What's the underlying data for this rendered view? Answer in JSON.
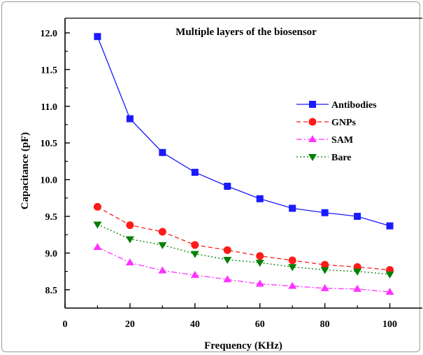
{
  "chart_data": {
    "type": "line",
    "title": "Multiple layers of the biosensor",
    "xlabel": "Frequency (KHz)",
    "ylabel": "Capacitance (pF)",
    "xlim": [
      0,
      110
    ],
    "ylim": [
      8.25,
      12.2
    ],
    "x_ticks": [
      0,
      20,
      40,
      60,
      80,
      100
    ],
    "x_tick_labels": [
      "0",
      "20",
      "40",
      "60",
      "80",
      "100"
    ],
    "y_ticks": [
      8.5,
      9.0,
      9.5,
      10.0,
      10.5,
      11.0,
      11.5,
      12.0
    ],
    "y_tick_labels": [
      "8.5",
      "9.0",
      "9.5",
      "10.0",
      "10.5",
      "11.0",
      "11.5",
      "12.0"
    ],
    "legend_position": "right",
    "x": [
      10,
      20,
      30,
      40,
      50,
      60,
      70,
      80,
      90,
      100
    ],
    "series": [
      {
        "name": "Antibodies",
        "color": "#1a1aff",
        "marker": "square",
        "line": "solid",
        "values": [
          11.95,
          10.83,
          10.37,
          10.1,
          9.91,
          9.74,
          9.61,
          9.55,
          9.5,
          9.37
        ]
      },
      {
        "name": "GNPs",
        "color": "#ff1a1a",
        "marker": "circle",
        "line": "dashed",
        "values": [
          9.63,
          9.38,
          9.29,
          9.11,
          9.04,
          8.96,
          8.9,
          8.84,
          8.81,
          8.77
        ]
      },
      {
        "name": "SAM",
        "color": "#ff33ff",
        "marker": "triangle-up",
        "line": "dashdot",
        "values": [
          9.08,
          8.87,
          8.76,
          8.7,
          8.64,
          8.58,
          8.55,
          8.52,
          8.51,
          8.47
        ]
      },
      {
        "name": "Bare",
        "color": "#008000",
        "marker": "triangle-down",
        "line": "dotted",
        "values": [
          9.39,
          9.19,
          9.11,
          8.99,
          8.91,
          8.87,
          8.81,
          8.77,
          8.75,
          8.71
        ]
      }
    ]
  }
}
